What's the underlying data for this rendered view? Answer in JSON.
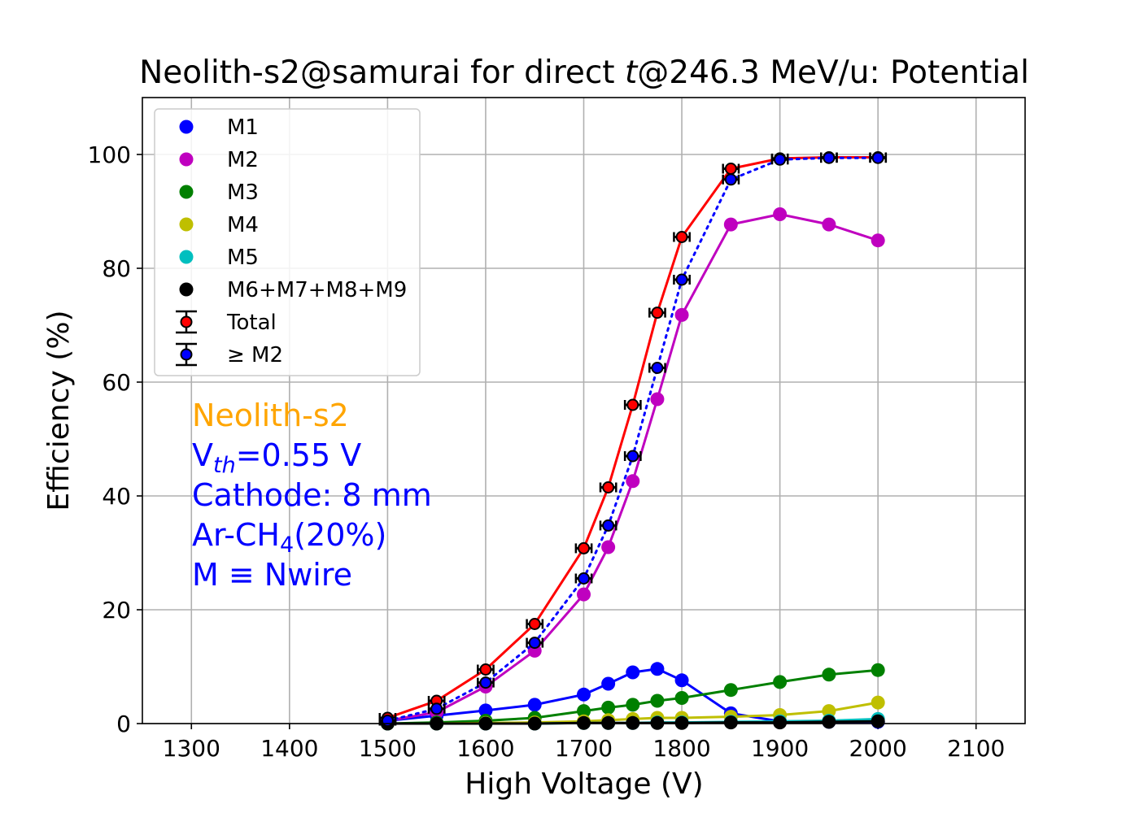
{
  "chart_data": {
    "type": "line",
    "title": "Neolith-s2@samurai for direct t@246.3 MeV/u: Potential",
    "title_parts": {
      "prefix": "Neolith-s2@samurai for direct ",
      "italic": "t",
      "suffix": "@246.3 MeV/u: Potential"
    },
    "xlabel": "High Voltage (V)",
    "ylabel": "Efficiency (%)",
    "xlim": [
      1250,
      2150
    ],
    "ylim": [
      0,
      110
    ],
    "xticks": [
      1300,
      1400,
      1500,
      1600,
      1700,
      1800,
      1900,
      2000,
      2100
    ],
    "yticks": [
      0,
      20,
      40,
      60,
      80,
      100
    ],
    "grid": true,
    "legend_position": "upper-left",
    "series": [
      {
        "name": "M1",
        "color": "#0000ff",
        "kind": "dots",
        "line_style": "solid",
        "x": [
          1500,
          1550,
          1600,
          1650,
          1700,
          1725,
          1750,
          1775,
          1800,
          1850,
          1900,
          1950,
          2000
        ],
        "y": [
          0.5,
          1.4,
          2.3,
          3.3,
          5.1,
          7.0,
          9.0,
          9.6,
          7.6,
          1.8,
          0.4,
          0.3,
          0.3
        ]
      },
      {
        "name": "M2",
        "color": "#bf00bf",
        "kind": "dots",
        "line_style": "solid",
        "x": [
          1500,
          1550,
          1600,
          1650,
          1700,
          1725,
          1750,
          1775,
          1800,
          1850,
          1900,
          1950,
          2000
        ],
        "y": [
          0.5,
          2.0,
          6.5,
          12.8,
          22.7,
          31.0,
          42.6,
          57.0,
          71.8,
          87.7,
          89.5,
          87.7,
          84.9
        ]
      },
      {
        "name": "M3",
        "color": "#008000",
        "kind": "dots",
        "line_style": "solid",
        "x": [
          1500,
          1550,
          1600,
          1650,
          1700,
          1725,
          1750,
          1775,
          1800,
          1850,
          1900,
          1950,
          2000
        ],
        "y": [
          0.0,
          0.2,
          0.5,
          1.0,
          2.2,
          2.8,
          3.3,
          4.0,
          4.5,
          5.9,
          7.3,
          8.6,
          9.4
        ]
      },
      {
        "name": "M4",
        "color": "#bfbf00",
        "kind": "dots",
        "line_style": "solid",
        "x": [
          1500,
          1550,
          1600,
          1650,
          1700,
          1725,
          1750,
          1775,
          1800,
          1850,
          1900,
          1950,
          2000
        ],
        "y": [
          0.0,
          0.0,
          0.1,
          0.2,
          0.4,
          0.6,
          0.8,
          1.0,
          1.0,
          1.2,
          1.5,
          2.2,
          3.7
        ]
      },
      {
        "name": "M5",
        "color": "#00bfbf",
        "kind": "dots",
        "line_style": "solid",
        "x": [
          1500,
          1550,
          1600,
          1650,
          1700,
          1725,
          1750,
          1775,
          1800,
          1850,
          1900,
          1950,
          2000
        ],
        "y": [
          0.0,
          0.0,
          0.0,
          0.0,
          0.1,
          0.1,
          0.1,
          0.2,
          0.2,
          0.3,
          0.4,
          0.5,
          0.8
        ]
      },
      {
        "name": "M6+M7+M8+M9",
        "color": "#000000",
        "kind": "dots",
        "line_style": "solid",
        "x": [
          1500,
          1550,
          1600,
          1650,
          1700,
          1725,
          1750,
          1775,
          1800,
          1850,
          1900,
          1950,
          2000
        ],
        "y": [
          0.0,
          0.0,
          0.0,
          0.0,
          0.1,
          0.1,
          0.1,
          0.1,
          0.1,
          0.2,
          0.2,
          0.3,
          0.4
        ]
      },
      {
        "name": "Total",
        "color": "#ff0000",
        "kind": "errorbar",
        "line_style": "solid",
        "x": [
          1500,
          1550,
          1600,
          1650,
          1700,
          1725,
          1750,
          1775,
          1800,
          1850,
          1900,
          1950,
          2000
        ],
        "y": [
          1.0,
          4.0,
          9.5,
          17.5,
          30.8,
          41.5,
          56.0,
          72.2,
          85.5,
          97.5,
          99.3,
          99.5,
          99.5
        ],
        "xerr": 8
      },
      {
        "name": "≥ M2",
        "color": "#0000ff",
        "kind": "errorbar",
        "line_style": "dotted",
        "x": [
          1500,
          1550,
          1600,
          1650,
          1700,
          1725,
          1750,
          1775,
          1800,
          1850,
          1900,
          1950,
          2000
        ],
        "y": [
          0.5,
          2.6,
          7.2,
          14.2,
          25.5,
          34.8,
          47.0,
          62.5,
          78.0,
          95.6,
          99.1,
          99.4,
          99.4
        ],
        "xerr": 8
      }
    ],
    "annotations": {
      "detector": {
        "text": "Neolith-s2",
        "color": "#ffa500"
      },
      "vth": {
        "main": "V",
        "sub": "th",
        "rest": "=0.55 V",
        "color": "#0000ff"
      },
      "cathode": {
        "text": "Cathode: 8 mm",
        "color": "#0000ff"
      },
      "gas": {
        "main": "Ar-CH",
        "sub": "4",
        "rest": "(20%)",
        "color": "#0000ff"
      },
      "mdef": {
        "text": "M ≡ Nwire",
        "color": "#0000ff"
      }
    }
  }
}
